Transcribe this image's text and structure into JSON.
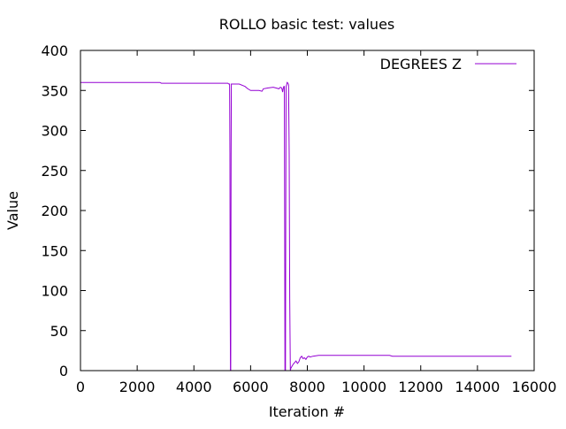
{
  "chart_data": {
    "type": "line",
    "title": "ROLLO  basic test: values",
    "xlabel": "Iteration #",
    "ylabel": "Value",
    "xlim": [
      0,
      16000
    ],
    "ylim": [
      0,
      400
    ],
    "xticks": [
      0,
      2000,
      4000,
      6000,
      8000,
      10000,
      12000,
      14000,
      16000
    ],
    "yticks": [
      0,
      50,
      100,
      150,
      200,
      250,
      300,
      350,
      400
    ],
    "grid": false,
    "legend_position": "top-right",
    "series": [
      {
        "name": "DEGREES Z",
        "color": "#9400D3",
        "points": [
          [
            0,
            360
          ],
          [
            2800,
            360
          ],
          [
            2850,
            359
          ],
          [
            5000,
            359
          ],
          [
            5200,
            359
          ],
          [
            5230,
            358
          ],
          [
            5260,
            358
          ],
          [
            5270,
            270
          ],
          [
            5280,
            90
          ],
          [
            5290,
            0
          ],
          [
            5300,
            0
          ],
          [
            5310,
            270
          ],
          [
            5320,
            358
          ],
          [
            5340,
            358
          ],
          [
            5600,
            358
          ],
          [
            5800,
            355
          ],
          [
            5900,
            352
          ],
          [
            6000,
            350
          ],
          [
            6300,
            350
          ],
          [
            6400,
            349
          ],
          [
            6450,
            352
          ],
          [
            6600,
            353
          ],
          [
            6800,
            354
          ],
          [
            6900,
            353
          ],
          [
            7000,
            352
          ],
          [
            7050,
            354
          ],
          [
            7100,
            353
          ],
          [
            7130,
            348
          ],
          [
            7150,
            352
          ],
          [
            7170,
            355
          ],
          [
            7190,
            355
          ],
          [
            7200,
            180
          ],
          [
            7210,
            0
          ],
          [
            7230,
            0
          ],
          [
            7240,
            180
          ],
          [
            7250,
            355
          ],
          [
            7270,
            357
          ],
          [
            7290,
            360
          ],
          [
            7320,
            359
          ],
          [
            7340,
            357
          ],
          [
            7360,
            270
          ],
          [
            7380,
            90
          ],
          [
            7400,
            0
          ],
          [
            7420,
            3
          ],
          [
            7500,
            8
          ],
          [
            7600,
            12
          ],
          [
            7650,
            9
          ],
          [
            7700,
            11
          ],
          [
            7750,
            16
          ],
          [
            7800,
            18
          ],
          [
            7850,
            15
          ],
          [
            7900,
            16
          ],
          [
            7950,
            14
          ],
          [
            8000,
            17
          ],
          [
            8050,
            18
          ],
          [
            8100,
            17
          ],
          [
            8200,
            18
          ],
          [
            8400,
            19
          ],
          [
            9000,
            19
          ],
          [
            10000,
            19
          ],
          [
            10500,
            19
          ],
          [
            10900,
            19
          ],
          [
            11000,
            18
          ],
          [
            12000,
            18
          ],
          [
            13000,
            18
          ],
          [
            14000,
            18
          ],
          [
            15200,
            18
          ]
        ]
      }
    ]
  }
}
